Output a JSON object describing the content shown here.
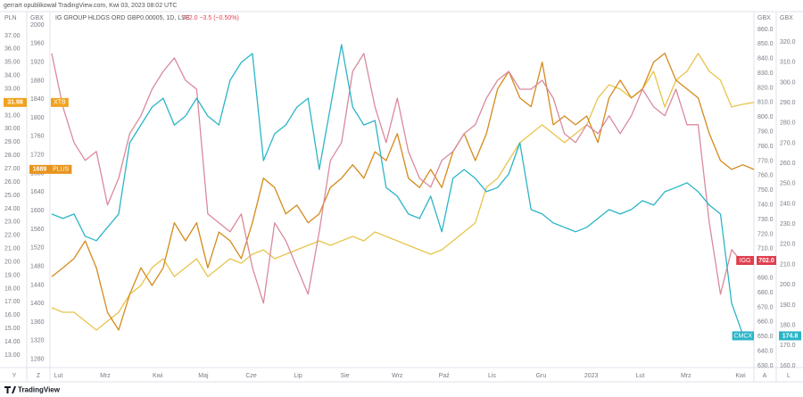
{
  "chart_data": {
    "type": "line",
    "caption": "gerrart opublikował TradingView.com, Kwi 03, 2023 08:02 UTC",
    "title": "IG GROUP HLDGS ORD GBP0.00005, 1D, LSE",
    "change": "702.0 −3.5 (−0.50%)",
    "footer": "TradingView",
    "corner_labels": [
      "Y",
      "Z",
      "A",
      "L"
    ],
    "x": [
      0,
      1,
      2,
      3,
      4,
      5,
      6,
      7,
      8,
      9,
      10,
      11,
      12,
      13,
      14,
      15,
      16,
      17,
      18,
      19,
      20,
      21,
      22,
      23,
      24,
      25,
      26,
      27,
      28,
      29,
      30,
      31,
      32,
      33,
      34,
      35,
      36,
      37,
      38,
      39,
      40,
      41,
      42,
      43,
      44,
      45,
      46,
      47,
      48,
      49,
      50,
      51,
      52,
      53,
      54,
      55,
      56,
      57,
      58,
      59,
      60,
      61,
      62,
      63
    ],
    "xlim": [
      0,
      63
    ],
    "xticks": [
      {
        "value": 0.6,
        "label": "Lut"
      },
      {
        "value": 4.8,
        "label": "Mrz"
      },
      {
        "value": 9.5,
        "label": "Kwi"
      },
      {
        "value": 13.6,
        "label": "Maj"
      },
      {
        "value": 17.9,
        "label": "Cze"
      },
      {
        "value": 22.1,
        "label": "Lip"
      },
      {
        "value": 26.3,
        "label": "Sie"
      },
      {
        "value": 31,
        "label": "Wrz"
      },
      {
        "value": 35.2,
        "label": "Paź"
      },
      {
        "value": 39.5,
        "label": "Lis"
      },
      {
        "value": 43.9,
        "label": "Gru"
      },
      {
        "value": 48.4,
        "label": "2023"
      },
      {
        "value": 52.8,
        "label": "Lut"
      },
      {
        "value": 56.9,
        "label": "Mrz"
      },
      {
        "value": 61.8,
        "label": "Kwi"
      }
    ],
    "axes": [
      {
        "unit": "PLN",
        "side": "left",
        "ylim": [
          12.2,
          37.8
        ],
        "yticks": [
          {
            "value": 13,
            "label": "13.00"
          },
          {
            "value": 14,
            "label": "14.00"
          },
          {
            "value": 15,
            "label": "15.00"
          },
          {
            "value": 16,
            "label": "16.00"
          },
          {
            "value": 17,
            "label": "17.00"
          },
          {
            "value": 18,
            "label": "18.00"
          },
          {
            "value": 19,
            "label": "19.00"
          },
          {
            "value": 20,
            "label": "20.00"
          },
          {
            "value": 21,
            "label": "21.00"
          },
          {
            "value": 22,
            "label": "22.00"
          },
          {
            "value": 23,
            "label": "23.00"
          },
          {
            "value": 24,
            "label": "24.00"
          },
          {
            "value": 25,
            "label": "25.00"
          },
          {
            "value": 26,
            "label": "26.00"
          },
          {
            "value": 27,
            "label": "27.00"
          },
          {
            "value": 28,
            "label": "28.00"
          },
          {
            "value": 29,
            "label": "29.00"
          },
          {
            "value": 30,
            "label": "30.00"
          },
          {
            "value": 31,
            "label": "31.00"
          },
          {
            "value": 32,
            "label": "32.00"
          },
          {
            "value": 33,
            "label": "33.00"
          },
          {
            "value": 34,
            "label": "34.00"
          },
          {
            "value": 35,
            "label": "35.00"
          },
          {
            "value": 36,
            "label": "36.00"
          },
          {
            "value": 37,
            "label": "37.00"
          }
        ]
      },
      {
        "unit": "GBX",
        "side": "left",
        "ylim": [
          1266,
          2000
        ],
        "yticks": [
          1280,
          1320,
          1360,
          1400,
          1440,
          1480,
          1520,
          1560,
          1600,
          1640,
          1680,
          1720,
          1760,
          1800,
          1840,
          1880,
          1920,
          1960,
          2000
        ]
      },
      {
        "unit": "GBX",
        "side": "right",
        "ylim": [
          630,
          863
        ],
        "yticks": [
          {
            "value": 630,
            "label": "630.0"
          },
          {
            "value": 640,
            "label": "640.0"
          },
          {
            "value": 650,
            "label": "650.0"
          },
          {
            "value": 660,
            "label": "660.0"
          },
          {
            "value": 670,
            "label": "670.0"
          },
          {
            "value": 680,
            "label": "680.0"
          },
          {
            "value": 690,
            "label": "690.0"
          },
          {
            "value": 700,
            "label": "700.0"
          },
          {
            "value": 710,
            "label": "710.0"
          },
          {
            "value": 720,
            "label": "720.0"
          },
          {
            "value": 730,
            "label": "730.0"
          },
          {
            "value": 740,
            "label": "740.0"
          },
          {
            "value": 750,
            "label": "750.0"
          },
          {
            "value": 760,
            "label": "760.0"
          },
          {
            "value": 770,
            "label": "770.0"
          },
          {
            "value": 780,
            "label": "780.0"
          },
          {
            "value": 790,
            "label": "790.0"
          },
          {
            "value": 800,
            "label": "800.0"
          },
          {
            "value": 810,
            "label": "810.0"
          },
          {
            "value": 820,
            "label": "820.0"
          },
          {
            "value": 830,
            "label": "830.0"
          },
          {
            "value": 840,
            "label": "840.0"
          },
          {
            "value": 850,
            "label": "850.0"
          },
          {
            "value": 860,
            "label": "860.0"
          }
        ]
      },
      {
        "unit": "GBX",
        "side": "right",
        "ylim": [
          160,
          328.4
        ],
        "yticks": [
          {
            "value": 160,
            "label": "160.0"
          },
          {
            "value": 170,
            "label": "170.0"
          },
          {
            "value": 180,
            "label": "180.0"
          },
          {
            "value": 190,
            "label": "190.0"
          },
          {
            "value": 200,
            "label": "200.0"
          },
          {
            "value": 210,
            "label": "210.0"
          },
          {
            "value": 220,
            "label": "220.0"
          },
          {
            "value": 230,
            "label": "230.0"
          },
          {
            "value": 240,
            "label": "240.0"
          },
          {
            "value": 250,
            "label": "250.0"
          },
          {
            "value": 260,
            "label": "260.0"
          },
          {
            "value": 270,
            "label": "270.0"
          },
          {
            "value": 280,
            "label": "280.0"
          },
          {
            "value": 290,
            "label": "290.0"
          },
          {
            "value": 300,
            "label": "300.0"
          },
          {
            "value": 310,
            "label": "310.0"
          },
          {
            "value": 320,
            "label": "320.0"
          }
        ]
      }
    ],
    "series": [
      {
        "name": "XTB",
        "axis": 0,
        "color": "#e8c44c",
        "tag_color": "#f0a21e",
        "values": [
          16.56,
          16.22,
          16.22,
          15.55,
          14.88,
          15.55,
          16.22,
          17.56,
          18.23,
          19.57,
          20.24,
          18.9,
          19.57,
          20.24,
          18.9,
          19.57,
          20.24,
          19.91,
          20.58,
          20.91,
          20.24,
          20.58,
          20.91,
          21.25,
          21.58,
          21.25,
          21.58,
          21.92,
          21.58,
          22.25,
          21.92,
          21.58,
          21.25,
          20.91,
          20.58,
          20.91,
          21.58,
          22.25,
          22.93,
          25.61,
          26.28,
          27.62,
          28.96,
          29.63,
          30.3,
          29.63,
          28.96,
          29.63,
          30.3,
          32.31,
          33.31,
          32.98,
          32.31,
          32.98,
          34.32,
          31.64,
          33.65,
          34.32,
          35.66,
          34.32,
          33.65,
          31.64,
          31.84,
          31.98
        ]
      },
      {
        "name": "PLUS",
        "axis": 1,
        "color": "#d48a1c",
        "tag_color": "#e8941c",
        "values": [
          1458,
          1477,
          1497,
          1535,
          1477,
          1381,
          1343,
          1420,
          1477,
          1439,
          1477,
          1574,
          1535,
          1574,
          1477,
          1554,
          1535,
          1497,
          1574,
          1670,
          1650,
          1593,
          1612,
          1574,
          1593,
          1650,
          1670,
          1699,
          1670,
          1727,
          1708,
          1766,
          1670,
          1650,
          1689,
          1650,
          1727,
          1766,
          1708,
          1766,
          1862,
          1900,
          1843,
          1824,
          1920,
          1785,
          1804,
          1785,
          1804,
          1747,
          1843,
          1881,
          1843,
          1862,
          1920,
          1939,
          1881,
          1862,
          1843,
          1766,
          1708,
          1689,
          1699,
          1689
        ]
      },
      {
        "name": "IGG",
        "axis": 2,
        "color": "#d98a9c",
        "tag_color": "#e03e4e",
        "values": [
          843.5,
          807.0,
          782.6,
          770.4,
          776.5,
          739.9,
          758.2,
          788.7,
          800.9,
          819.1,
          831.3,
          840.5,
          825.2,
          819.1,
          733.8,
          727.7,
          721.6,
          733.8,
          697.2,
          672.8,
          727.7,
          715.5,
          697.2,
          678.9,
          721.6,
          770.4,
          782.6,
          831.3,
          843.5,
          807.0,
          782.6,
          813.0,
          776.5,
          758.2,
          752.1,
          770.4,
          776.5,
          788.7,
          794.8,
          813.0,
          825.2,
          831.3,
          819.1,
          819.1,
          825.2,
          813.0,
          788.7,
          782.6,
          794.8,
          788.7,
          800.9,
          788.7,
          800.9,
          819.1,
          807.0,
          800.9,
          819.1,
          794.8,
          794.8,
          727.7,
          678.9,
          709.4,
          700.2,
          702.0
        ],
        "value_labels": [
          null,
          null,
          null,
          null,
          null,
          null,
          null,
          null,
          null,
          null,
          null,
          null,
          null,
          null,
          null,
          null,
          null,
          null,
          null,
          null,
          null,
          null,
          null,
          null,
          null,
          null,
          null,
          null,
          null,
          null,
          null,
          null,
          null,
          null,
          null,
          null,
          null,
          null,
          null,
          null,
          null,
          null,
          null,
          null,
          null,
          null,
          null,
          null,
          null,
          null,
          null,
          null,
          null,
          null,
          null,
          null,
          null,
          null,
          null,
          null,
          null,
          null,
          null,
          "702.0"
        ]
      },
      {
        "name": "CMCX",
        "axis": 3,
        "color": "#2bb5c8",
        "tag_color": "#2bb5c8",
        "values": [
          235.0,
          232.8,
          235.0,
          224.0,
          221.8,
          228.4,
          235.0,
          270.2,
          279.0,
          287.8,
          292.2,
          279.0,
          283.4,
          292.2,
          283.4,
          279.0,
          301.1,
          309.9,
          314.3,
          261.4,
          274.6,
          279.0,
          287.8,
          292.2,
          257.0,
          287.8,
          318.7,
          287.8,
          279.0,
          281.2,
          248.1,
          243.8,
          235.0,
          232.8,
          243.8,
          226.2,
          252.6,
          257.0,
          252.6,
          246.0,
          248.1,
          254.8,
          270.2,
          237.2,
          235.0,
          230.6,
          228.4,
          226.2,
          228.4,
          232.8,
          237.2,
          235.0,
          237.2,
          241.6,
          239.4,
          246.0,
          248.1,
          250.4,
          246.0,
          239.4,
          235.0,
          190.9,
          175.5,
          174.8
        ]
      }
    ]
  }
}
